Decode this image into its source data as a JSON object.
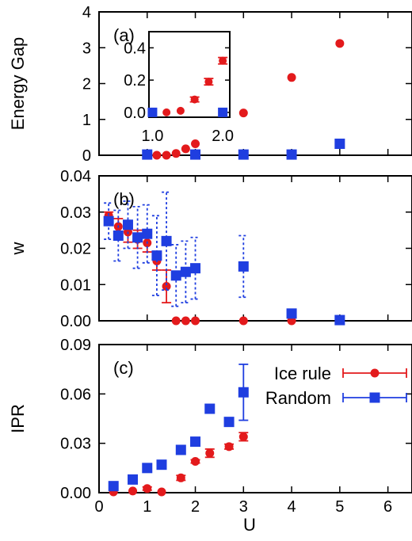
{
  "chart_data": [
    {
      "id": "a",
      "type": "scatter",
      "panel_label": "(a)",
      "ylabel": "Energy Gap",
      "xlim": [
        0,
        6.5
      ],
      "ylim": [
        0,
        4
      ],
      "yticks": [
        "0",
        "1",
        "2",
        "3",
        "4"
      ],
      "ytick_values": [
        0,
        1,
        2,
        3,
        4
      ],
      "series": [
        {
          "color": "#e31a1c",
          "marker": "circle",
          "x": [
            1.0,
            1.2,
            1.4,
            1.6,
            1.8,
            2.0,
            3.0,
            4.0,
            5.0
          ],
          "y": [
            0.0,
            0.0,
            0.0,
            0.05,
            0.18,
            0.32,
            1.18,
            2.17,
            3.12
          ]
        },
        {
          "color": "#1f3ee0",
          "marker": "square",
          "x": [
            1.0,
            2.0,
            3.0,
            4.0,
            5.0
          ],
          "y": [
            0.02,
            0.02,
            0.02,
            0.02,
            0.32
          ]
        }
      ],
      "inset": {
        "xlim": [
          0.95,
          2.1
        ],
        "ylim": [
          -0.03,
          0.5
        ],
        "xticks": [
          "1.0",
          "2.0"
        ],
        "xtick_values": [
          1.0,
          2.0
        ],
        "yticks": [
          "0.0",
          "0.2",
          "0.4"
        ],
        "ytick_values": [
          0.0,
          0.2,
          0.4
        ],
        "series": [
          {
            "color": "#e31a1c",
            "marker": "circle",
            "x": [
              1.0,
              1.2,
              1.4,
              1.6,
              1.8,
              2.0
            ],
            "y": [
              0.0,
              0.0,
              0.01,
              0.08,
              0.19,
              0.32
            ],
            "err": [
              0,
              0,
              0,
              0.015,
              0.02,
              0.02
            ]
          },
          {
            "color": "#1f3ee0",
            "marker": "square",
            "x": [
              1.0,
              2.0
            ],
            "y": [
              0.0,
              0.0
            ],
            "err": [
              0,
              0
            ]
          }
        ]
      }
    },
    {
      "id": "b",
      "type": "scatter",
      "panel_label": "(b)",
      "ylabel": "w",
      "xlim": [
        0,
        6.5
      ],
      "ylim": [
        0,
        0.04
      ],
      "yticks": [
        "0.00",
        "0.01",
        "0.02",
        "0.03",
        "0.04"
      ],
      "ytick_values": [
        0,
        0.01,
        0.02,
        0.03,
        0.04
      ],
      "series": [
        {
          "color": "#e31a1c",
          "marker": "circle",
          "x": [
            0.2,
            0.4,
            0.6,
            0.8,
            1.0,
            1.2,
            1.4,
            1.6,
            1.8,
            2.0,
            3.0,
            4.0,
            5.0
          ],
          "y": [
            0.029,
            0.026,
            0.0245,
            0.0225,
            0.0215,
            0.0165,
            0.0095,
            0.0,
            0.0,
            0.0,
            0.0,
            0.0,
            0.0
          ],
          "err": [
            0.001,
            0.0022,
            0.0028,
            0.0025,
            0.0025,
            0.0025,
            0.0045,
            0,
            0,
            0,
            0,
            0,
            0
          ]
        },
        {
          "color": "#1f3ee0",
          "marker": "square",
          "x": [
            0.2,
            0.4,
            0.6,
            0.8,
            1.0,
            1.2,
            1.4,
            1.6,
            1.8,
            2.0,
            3.0,
            4.0,
            5.0
          ],
          "y": [
            0.0275,
            0.0235,
            0.0265,
            0.023,
            0.024,
            0.018,
            0.022,
            0.0125,
            0.0135,
            0.0145,
            0.015,
            0.002,
            0.0002
          ],
          "err": [
            0.005,
            0.007,
            0.0065,
            0.0085,
            0.008,
            0.011,
            0.0135,
            0.0085,
            0.0085,
            0.0085,
            0.0085,
            0.001,
            0.0002
          ]
        }
      ]
    },
    {
      "id": "c",
      "type": "scatter",
      "panel_label": "(c)",
      "xlabel": "U",
      "ylabel": "IPR",
      "xlim": [
        0,
        6.5
      ],
      "ylim": [
        0,
        0.09
      ],
      "xticks": [
        "0",
        "1",
        "2",
        "3",
        "4",
        "5",
        "6"
      ],
      "xtick_values": [
        0,
        1,
        2,
        3,
        4,
        5,
        6
      ],
      "yticks": [
        "0.00",
        "0.03",
        "0.06",
        "0.09"
      ],
      "ytick_values": [
        0,
        0.03,
        0.06,
        0.09
      ],
      "series": [
        {
          "name": "Ice rule",
          "color": "#e31a1c",
          "marker": "circle",
          "x": [
            0.3,
            0.7,
            1.0,
            1.3,
            1.7,
            2.0,
            2.3,
            2.7,
            3.0
          ],
          "y": [
            0.0005,
            0.001,
            0.0025,
            0.0005,
            0.009,
            0.019,
            0.024,
            0.028,
            0.034
          ],
          "err": [
            0,
            0,
            0.001,
            0,
            0.0015,
            0.001,
            0.0025,
            0.0015,
            0.0025
          ]
        },
        {
          "name": "Random",
          "color": "#1f3ee0",
          "marker": "square",
          "x": [
            0.3,
            0.7,
            1.0,
            1.3,
            1.7,
            2.0,
            2.3,
            2.7,
            3.0
          ],
          "y": [
            0.004,
            0.008,
            0.015,
            0.017,
            0.026,
            0.031,
            0.051,
            0.043,
            0.061
          ],
          "err": [
            0,
            0,
            0,
            0,
            0,
            0,
            0.0015,
            0.002,
            0.017
          ]
        }
      ],
      "legend": "top-right"
    }
  ]
}
